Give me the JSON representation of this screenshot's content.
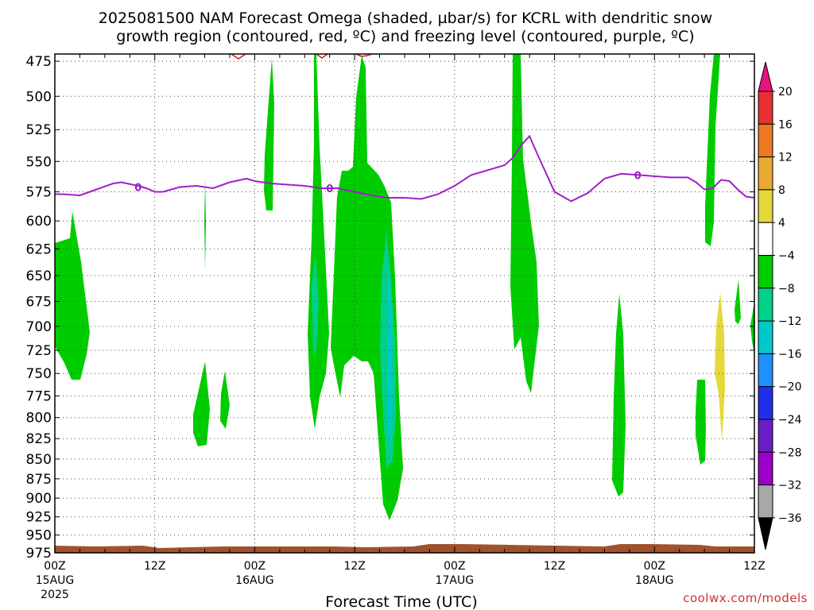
{
  "title_line1": "2025081500 NAM Forecast Omega (shaded, µbar/s) for KCRL with dendritic snow",
  "title_line2": "growth region (contoured, red, ºC) and freezing level (contoured, purple, ºC)",
  "credit": "coolwx.com/models",
  "colors": {
    "green": "#00cc00",
    "teal": "#00d08a",
    "cyan": "#00c8c8",
    "yellow": "#e6d83a",
    "ground": "#a0522d",
    "freezing": "#a020c8",
    "dgz": "#e02020"
  },
  "chart_data": {
    "type": "heatmap",
    "title": "2025081500 NAM Forecast Omega (shaded, µbar/s) for KCRL with dendritic snow growth region (contoured, red, ºC) and freezing level (contoured, purple, ºC)",
    "xlabel": "Forecast Time (UTC)",
    "ylabel": "",
    "xlim_hours": [
      0,
      84
    ],
    "ylim_hpa": [
      975,
      470
    ],
    "y_scale": "log-pressure",
    "grid": "dotted",
    "y_ticks": [
      "475",
      "500",
      "525",
      "550",
      "575",
      "600",
      "625",
      "650",
      "675",
      "700",
      "725",
      "750",
      "775",
      "800",
      "825",
      "850",
      "875",
      "900",
      "925",
      "950",
      "975"
    ],
    "x_ticks": [
      {
        "hour": 0,
        "label": "00Z",
        "date": "15AUG",
        "year": "2025"
      },
      {
        "hour": 12,
        "label": "12Z",
        "date": "",
        "year": ""
      },
      {
        "hour": 24,
        "label": "00Z",
        "date": "16AUG",
        "year": ""
      },
      {
        "hour": 36,
        "label": "12Z",
        "date": "",
        "year": ""
      },
      {
        "hour": 48,
        "label": "00Z",
        "date": "17AUG",
        "year": ""
      },
      {
        "hour": 60,
        "label": "12Z",
        "date": "",
        "year": ""
      },
      {
        "hour": 72,
        "label": "00Z",
        "date": "18AUG",
        "year": ""
      },
      {
        "hour": 84,
        "label": "12Z",
        "date": "",
        "year": ""
      }
    ],
    "colorbar": {
      "labels": [
        "20",
        "16",
        "12",
        "8",
        "4",
        "−4",
        "−8",
        "−12",
        "−16",
        "−20",
        "−24",
        "−28",
        "−32",
        "−36"
      ],
      "colors": [
        "#e8127c",
        "#e83030",
        "#ee7722",
        "#e8aa30",
        "#e6d83a",
        "#ffffff",
        "#00cc00",
        "#00d08a",
        "#00c8c8",
        "#1e90ff",
        "#2030e8",
        "#6a1ec8",
        "#9c00c8",
        "#a8a8a8",
        "#000000"
      ]
    },
    "freezing_level": {
      "label": "0",
      "points": [
        [
          0,
          577
        ],
        [
          1,
          577
        ],
        [
          3,
          578
        ],
        [
          5,
          573
        ],
        [
          7,
          568
        ],
        [
          8,
          567
        ],
        [
          10,
          570
        ],
        [
          11,
          572
        ],
        [
          12,
          575
        ],
        [
          13,
          575
        ],
        [
          14,
          573
        ],
        [
          15,
          571
        ],
        [
          17,
          570
        ],
        [
          19,
          572
        ],
        [
          21,
          567
        ],
        [
          23,
          564
        ],
        [
          24,
          566
        ],
        [
          26,
          568
        ],
        [
          28,
          569
        ],
        [
          30,
          570
        ],
        [
          32,
          572
        ],
        [
          34,
          572
        ],
        [
          36,
          575
        ],
        [
          38,
          578
        ],
        [
          40,
          580
        ],
        [
          42,
          580
        ],
        [
          44,
          581
        ],
        [
          46,
          577
        ],
        [
          48,
          570
        ],
        [
          50,
          561
        ],
        [
          52,
          557
        ],
        [
          54,
          553
        ],
        [
          55,
          547
        ],
        [
          56,
          537
        ],
        [
          57,
          530
        ],
        [
          58,
          545
        ],
        [
          60,
          575
        ],
        [
          62,
          583
        ],
        [
          64,
          576
        ],
        [
          66,
          564
        ],
        [
          68,
          560
        ],
        [
          70,
          561
        ],
        [
          72,
          562
        ],
        [
          74,
          563
        ],
        [
          76,
          563
        ],
        [
          77,
          567
        ],
        [
          78,
          573
        ],
        [
          79,
          572
        ],
        [
          80,
          565
        ],
        [
          81,
          566
        ],
        [
          82,
          573
        ],
        [
          83,
          579
        ],
        [
          84,
          580
        ]
      ]
    },
    "shaded_regions": [
      {
        "class": "-4 to -8",
        "t_range": [
          0,
          4.2
        ],
        "p_range": [
          590,
          760
        ]
      },
      {
        "class": "-4 to -8",
        "t_range": [
          25.6,
          26.8
        ],
        "p_range": [
          460,
          590
        ]
      },
      {
        "class": "-4 to -8",
        "t_range": [
          17,
          19.8
        ],
        "p_range": [
          752,
          835
        ]
      },
      {
        "class": "-4 to -8",
        "t_range": [
          19.6,
          21
        ],
        "p_range": [
          765,
          818
        ]
      },
      {
        "class": "-4 to -8",
        "t_range": [
          30.8,
          34.4
        ],
        "p_range": [
          470,
          815
        ]
      },
      {
        "class": "-4 to -12",
        "t_range": [
          34.4,
          41.6
        ],
        "p_range": [
          470,
          930
        ]
      },
      {
        "class": "-4 to -8",
        "t_range": [
          54.5,
          58.5
        ],
        "p_range": [
          470,
          795
        ]
      },
      {
        "class": "-4 to -8",
        "t_range": [
          67.5,
          68.8
        ],
        "p_range": [
          665,
          900
        ]
      },
      {
        "class": "-4 to -8",
        "t_range": [
          77.5,
          78.8
        ],
        "p_range": [
          757,
          865
        ]
      },
      {
        "class": "-4 to -8",
        "t_range": [
          78.8,
          80.2
        ],
        "p_range": [
          460,
          620
        ]
      },
      {
        "class": "4 to 8",
        "t_range": [
          79.8,
          80.8
        ],
        "p_range": [
          665,
          825
        ]
      },
      {
        "class": "-4 to -8",
        "t_range": [
          81.2,
          81.8
        ],
        "p_range": [
          650,
          718
        ]
      }
    ],
    "dendritic_growth_region": {
      "label": "red",
      "visible_near_top": true,
      "t_hours": [
        21,
        28,
        30.5,
        37.5
      ],
      "p_hpa": 472
    }
  }
}
